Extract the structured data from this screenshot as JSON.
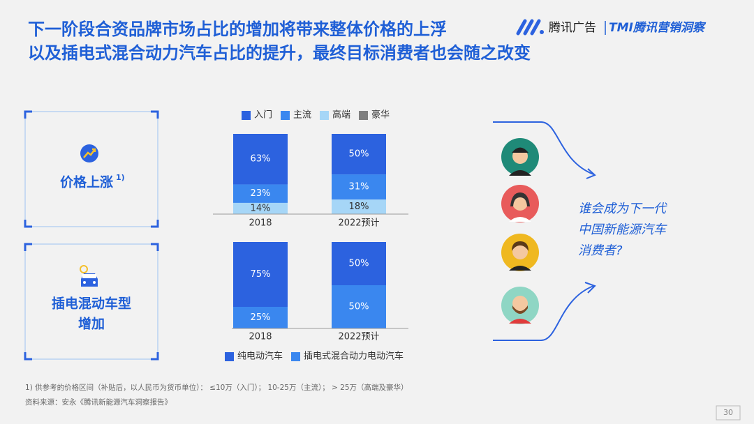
{
  "header": {
    "title_lines": [
      "下一阶段合资品牌市场占比的增加将带来整体价格的上浮",
      "以及插电式混合动力汽车占比的提升，最终目标消费者也会随之改变"
    ],
    "logo_brand": "腾讯广告",
    "logo_product": "TMI腾讯营销洞察"
  },
  "cards": [
    {
      "label": "价格上涨",
      "note": "1)"
    },
    {
      "label_lines": [
        "插电混动车型",
        "增加"
      ]
    }
  ],
  "chart_data": [
    {
      "type": "stacked_bar",
      "categories": [
        "2018",
        "2022预计"
      ],
      "legend": "top",
      "series": [
        {
          "name": "入门",
          "color": "#2c62df",
          "values": [
            63,
            50
          ],
          "value_labels": [
            "63%",
            "50%"
          ]
        },
        {
          "name": "主流",
          "color": "#3a87ef",
          "values": [
            23,
            31
          ],
          "value_labels": [
            "23%",
            "31%"
          ]
        },
        {
          "name": "高端",
          "color": "#a6d6f7",
          "values": [
            14,
            18
          ],
          "value_labels": [
            "14%",
            "18%"
          ]
        },
        {
          "name": "豪华",
          "color": "#7f7f7f",
          "values": [
            null,
            null
          ]
        }
      ]
    },
    {
      "type": "stacked_bar",
      "categories": [
        "2018",
        "2022预计"
      ],
      "legend": "bottom",
      "series": [
        {
          "name": "纯电动汽车",
          "color": "#2c62df",
          "values": [
            75,
            50
          ],
          "value_labels": [
            "75%",
            "50%"
          ]
        },
        {
          "name": "插电式混合动力电动汽车",
          "color": "#3a87ef",
          "values": [
            25,
            50
          ],
          "value_labels": [
            "25%",
            "50%"
          ]
        }
      ]
    }
  ],
  "callout": {
    "lines": [
      "谁会成为下一代",
      "中国新能源汽车",
      "消费者?"
    ]
  },
  "footnote": "1) 供参考的价格区间（补贴后，以人民币为货币单位）： ≤10万（入门）； 10-25万（主流）； > 25万（高端及豪华）",
  "source": "资料来源：安永《腾讯新能源汽车洞察报告》",
  "page_number": "30"
}
